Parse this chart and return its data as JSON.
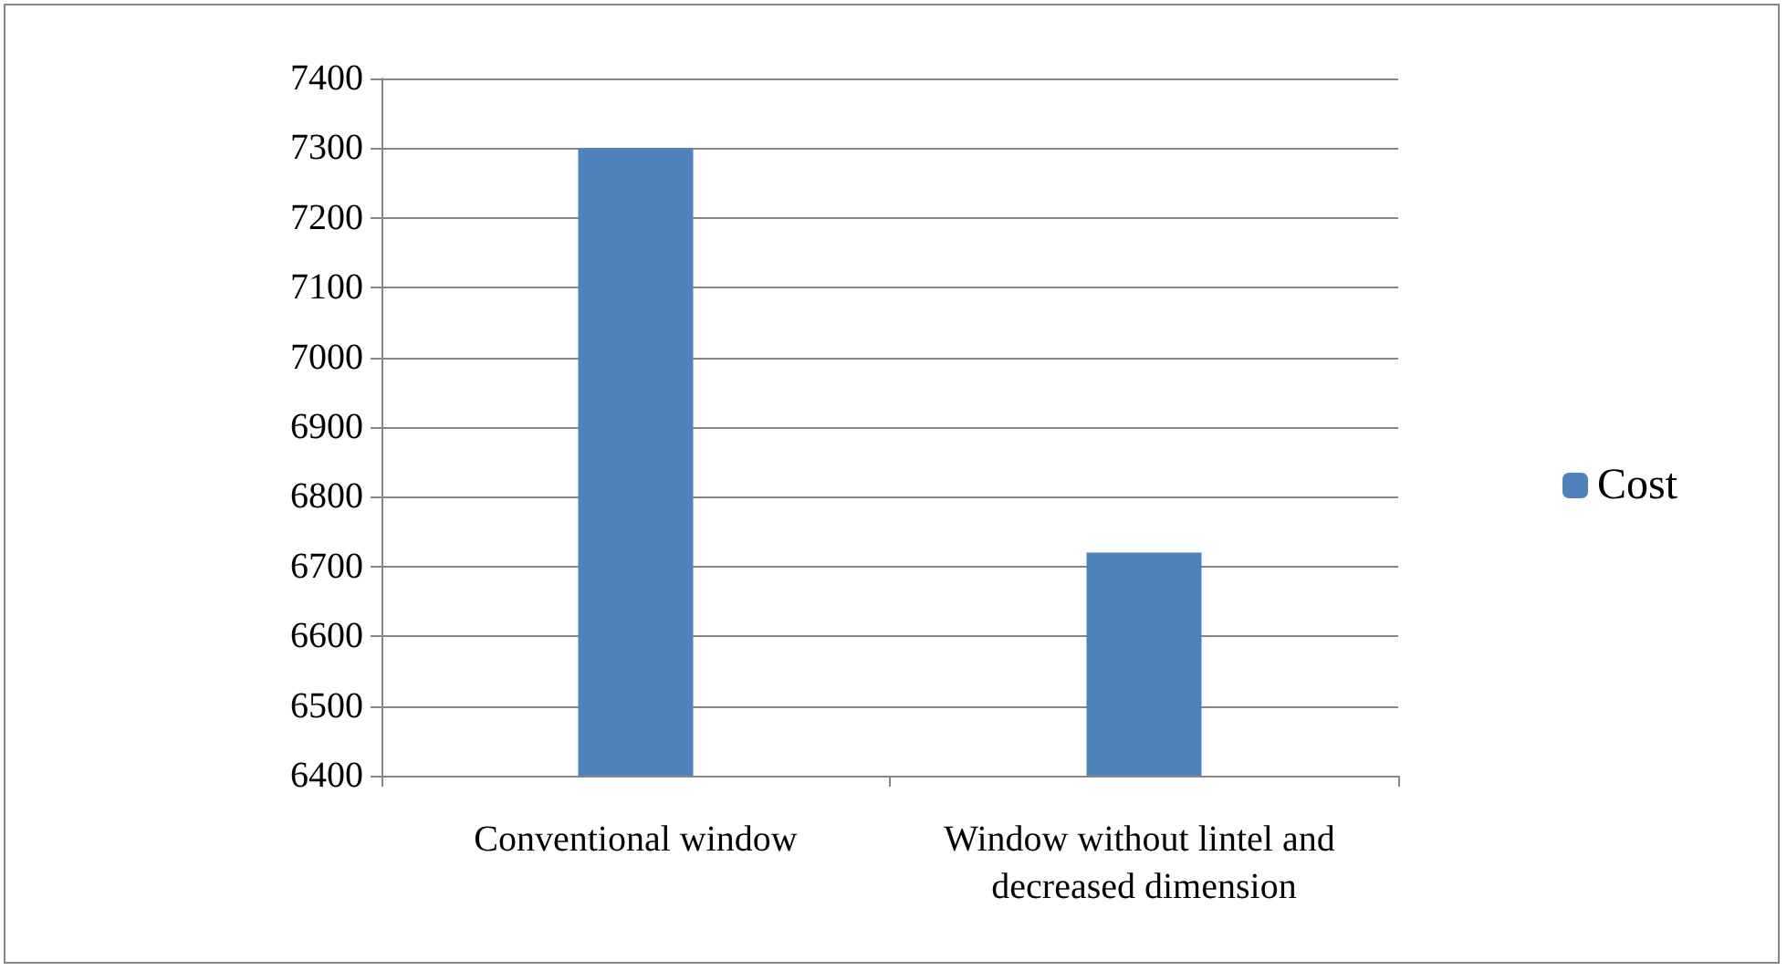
{
  "chart_data": {
    "type": "bar",
    "categories": [
      "Conventional window",
      "Window without lintel and decreased dimension"
    ],
    "series": [
      {
        "name": "Cost",
        "color": "#4f81bd",
        "values": [
          7300,
          6720
        ]
      }
    ],
    "ylim": [
      6400,
      7400
    ],
    "yticks": [
      6400,
      6500,
      6600,
      6700,
      6800,
      6900,
      7000,
      7100,
      7200,
      7300,
      7400
    ],
    "grid": "y",
    "legend": "right"
  }
}
